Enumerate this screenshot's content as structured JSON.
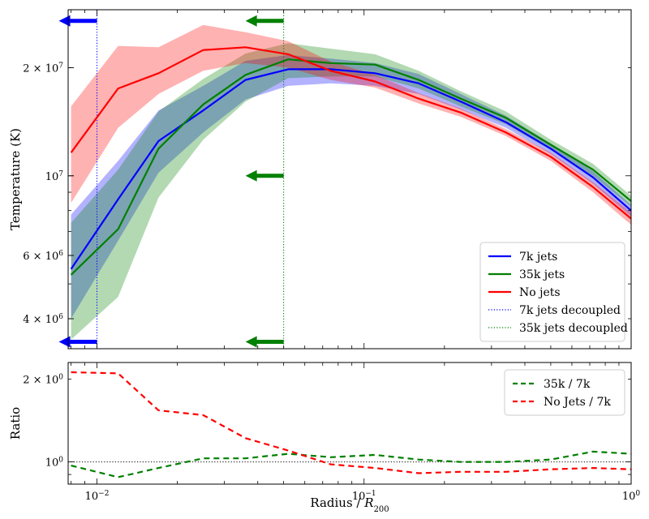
{
  "chart_data": [
    {
      "type": "line",
      "panel": "top",
      "xscale": "log",
      "yscale": "log",
      "xlim": [
        0.0078,
        1.0
      ],
      "ylim": [
        3300000,
        29000000
      ],
      "ylabel": "Temperature (K)",
      "y_ticks": [
        {
          "value": 20000000,
          "base": "2 × 10",
          "exp": "7"
        },
        {
          "value": 10000000,
          "base": "10",
          "exp": "7"
        },
        {
          "value": 6000000,
          "base": "6 × 10",
          "exp": "6"
        },
        {
          "value": 4000000,
          "base": "4 × 10",
          "exp": "6"
        }
      ],
      "x": [
        0.008,
        0.012,
        0.017,
        0.025,
        0.036,
        0.052,
        0.075,
        0.11,
        0.16,
        0.23,
        0.34,
        0.5,
        0.72,
        1.0
      ],
      "series": [
        {
          "name": "7k jets",
          "color": "#0000ff",
          "style": "solid",
          "values": [
            5500000,
            8600000,
            12500000,
            15200000,
            18500000,
            19800000,
            19800000,
            19300000,
            18100000,
            16100000,
            14100000,
            11900000,
            9900000,
            8000000
          ],
          "lower": [
            4000000,
            6600000,
            10200000,
            13200000,
            16300000,
            17800000,
            18100000,
            17800000,
            16900000,
            15300000,
            13600000,
            11500000,
            9500000,
            7700000
          ],
          "upper": [
            7800000,
            11000000,
            15200000,
            17800000,
            20900000,
            21700000,
            21200000,
            20600000,
            19200000,
            16900000,
            14700000,
            12300000,
            10300000,
            8300000
          ]
        },
        {
          "name": "35k jets",
          "color": "#008000",
          "style": "solid",
          "values": [
            5300000,
            7100000,
            11900000,
            15800000,
            19100000,
            21100000,
            20600000,
            20400000,
            18500000,
            16400000,
            14500000,
            12200000,
            10400000,
            8500000
          ],
          "lower": [
            3500000,
            4600000,
            8700000,
            12600000,
            16100000,
            18700000,
            18900000,
            18900000,
            17500000,
            15600000,
            13900000,
            11800000,
            10000000,
            8200000
          ],
          "upper": [
            7400000,
            10400000,
            15100000,
            18600000,
            21900000,
            23400000,
            22600000,
            21800000,
            19600000,
            17200000,
            15100000,
            12600000,
            10800000,
            8800000
          ]
        },
        {
          "name": "No jets",
          "color": "#ff0000",
          "style": "solid",
          "values": [
            11600000,
            17500000,
            19300000,
            22400000,
            22800000,
            21800000,
            19600000,
            18300000,
            16400000,
            15000000,
            13200000,
            11300000,
            9300000,
            7600000
          ],
          "lower": [
            8400000,
            13600000,
            16900000,
            19600000,
            20600000,
            20000000,
            18500000,
            17600000,
            15900000,
            14600000,
            12900000,
            11000000,
            9000000,
            7300000
          ],
          "upper": [
            15600000,
            23000000,
            22800000,
            26300000,
            25100000,
            23700000,
            20800000,
            19100000,
            17000000,
            15400000,
            13500000,
            11600000,
            9600000,
            7900000
          ]
        }
      ],
      "vlines": [
        {
          "name": "7k jets decoupled",
          "x": 0.01,
          "color": "#0000ff",
          "style": "dotted"
        },
        {
          "name": "35k jets decoupled",
          "x": 0.05,
          "color": "#008000",
          "style": "dotted"
        }
      ],
      "arrows": [
        {
          "x": 0.01,
          "y": 27000000,
          "color": "#0000ff",
          "direction": "left"
        },
        {
          "x": 0.01,
          "y": 3450000,
          "color": "#0000ff",
          "direction": "left"
        },
        {
          "x": 0.05,
          "y": 27000000,
          "color": "#008000",
          "direction": "left"
        },
        {
          "x": 0.05,
          "y": 10000000,
          "color": "#008000",
          "direction": "left"
        },
        {
          "x": 0.05,
          "y": 3450000,
          "color": "#008000",
          "direction": "left"
        }
      ],
      "legend": {
        "placement": "lower-right",
        "entries": [
          {
            "label": "7k jets",
            "color": "#0000ff",
            "style": "solid"
          },
          {
            "label": "35k jets",
            "color": "#008000",
            "style": "solid"
          },
          {
            "label": "No jets",
            "color": "#ff0000",
            "style": "solid"
          },
          {
            "label": "7k jets decoupled",
            "color": "#0000ff",
            "style": "dotted"
          },
          {
            "label": "35k jets decoupled",
            "color": "#008000",
            "style": "dotted"
          }
        ]
      }
    },
    {
      "type": "line",
      "panel": "bottom",
      "xscale": "log",
      "yscale": "log",
      "xlim": [
        0.0078,
        1.0
      ],
      "ylim": [
        0.83,
        2.3
      ],
      "xlabel": "Radius / ",
      "xlabel_symbol": "R",
      "xlabel_sub": "200",
      "ylabel": "Ratio",
      "x_ticks": [
        {
          "value": 0.01,
          "base": "10",
          "exp": "−2"
        },
        {
          "value": 0.1,
          "base": "10",
          "exp": "−1"
        },
        {
          "value": 1.0,
          "base": "10",
          "exp": "0"
        }
      ],
      "y_ticks": [
        {
          "value": 2.0,
          "base": "2 × 10",
          "exp": "0"
        },
        {
          "value": 1.0,
          "base": "10",
          "exp": "0"
        }
      ],
      "x": [
        0.008,
        0.012,
        0.017,
        0.025,
        0.036,
        0.052,
        0.075,
        0.11,
        0.16,
        0.23,
        0.34,
        0.5,
        0.72,
        1.0
      ],
      "series": [
        {
          "name": "35k / 7k",
          "color": "#008000",
          "style": "dashed",
          "values": [
            0.97,
            0.88,
            0.95,
            1.03,
            1.03,
            1.07,
            1.04,
            1.06,
            1.02,
            1.0,
            1.0,
            1.02,
            1.09,
            1.07
          ]
        },
        {
          "name": "No Jets / 7k",
          "color": "#ff0000",
          "style": "dashed",
          "values": [
            2.12,
            2.1,
            1.54,
            1.48,
            1.22,
            1.1,
            0.98,
            0.95,
            0.91,
            0.92,
            0.92,
            0.94,
            0.95,
            0.94
          ]
        }
      ],
      "hlines": [
        {
          "y": 1.0,
          "color": "#000000",
          "style": "dotted"
        }
      ],
      "legend": {
        "placement": "upper-right",
        "entries": [
          {
            "label": "35k / 7k",
            "color": "#008000",
            "style": "dashed"
          },
          {
            "label": "No Jets / 7k",
            "color": "#ff0000",
            "style": "dashed"
          }
        ]
      }
    }
  ]
}
